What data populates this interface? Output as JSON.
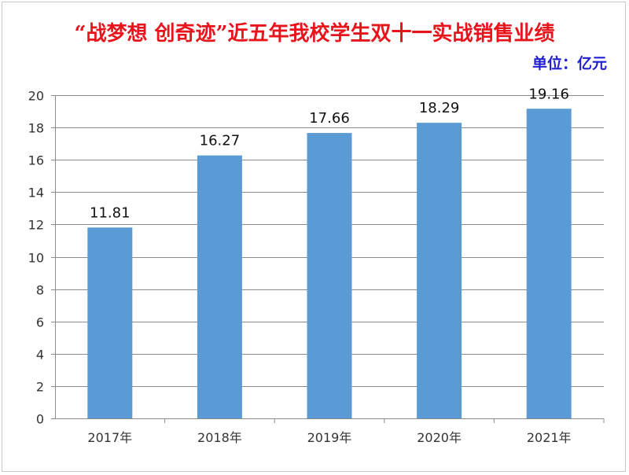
{
  "chart_data": {
    "type": "bar",
    "title": "“战梦想 创奇迹”近五年我校学生双十一实战销售业绩",
    "unit_label": "单位：亿元",
    "categories": [
      "2017年",
      "2018年",
      "2019年",
      "2020年",
      "2021年"
    ],
    "values": [
      11.81,
      16.27,
      17.66,
      18.29,
      19.16
    ],
    "value_labels": [
      "11.81",
      "16.27",
      "17.66",
      "18.29",
      "19.16"
    ],
    "yticks": [
      "0",
      "2",
      "4",
      "6",
      "8",
      "10",
      "12",
      "14",
      "16",
      "18",
      "20"
    ],
    "ylim": [
      0,
      20
    ],
    "grid": true,
    "legend": "none",
    "bar_color": "#5b9bd5",
    "title_color": "#e8141c",
    "unit_color": "#1f1fd0"
  }
}
